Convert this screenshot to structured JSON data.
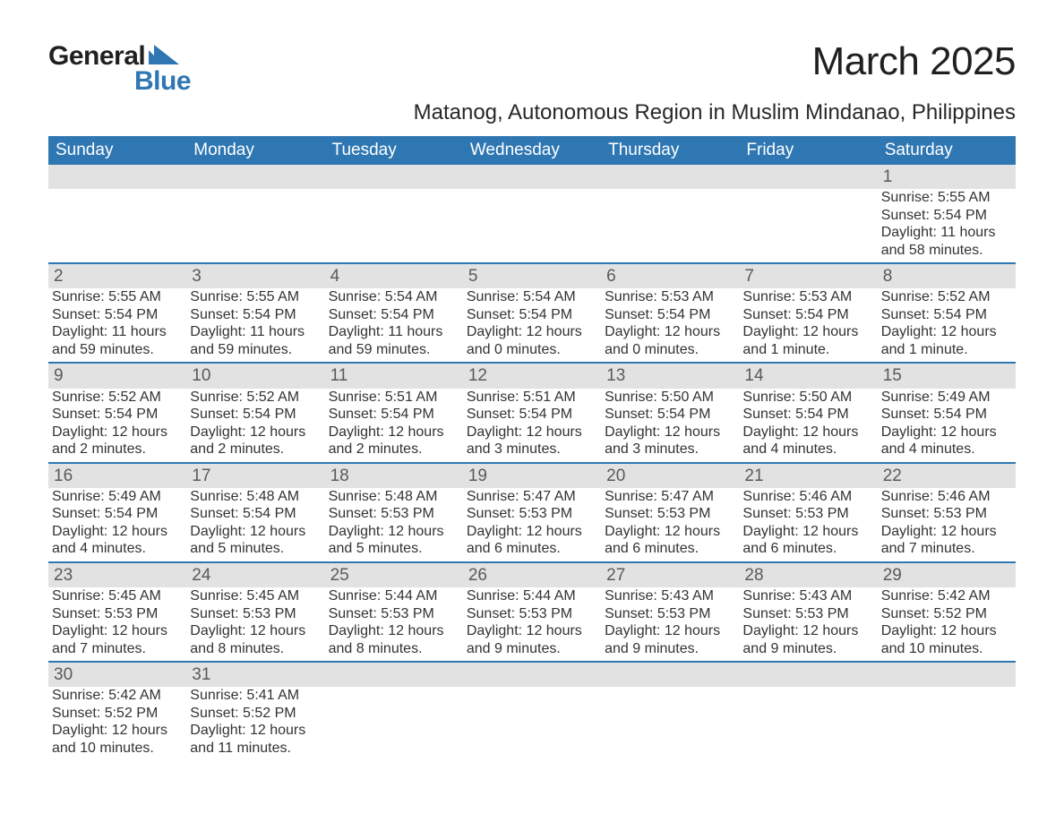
{
  "logo": {
    "text_top": "General",
    "text_bottom": "Blue",
    "color_blue": "#2f77b3",
    "color_dark": "#202020"
  },
  "header": {
    "month_title": "March 2025",
    "location": "Matanog, Autonomous Region in Muslim Mindanao, Philippines"
  },
  "calendar": {
    "header_bg": "#2f77b3",
    "header_fg": "#ffffff",
    "daynum_bg": "#e2e2e2",
    "daynum_fg": "#5a5a5a",
    "rule_color": "#2f77b3",
    "columns": [
      "Sunday",
      "Monday",
      "Tuesday",
      "Wednesday",
      "Thursday",
      "Friday",
      "Saturday"
    ],
    "weeks": [
      [
        null,
        null,
        null,
        null,
        null,
        null,
        {
          "n": "1",
          "sr": "Sunrise: 5:55 AM",
          "ss": "Sunset: 5:54 PM",
          "d1": "Daylight: 11 hours",
          "d2": "and 58 minutes."
        }
      ],
      [
        {
          "n": "2",
          "sr": "Sunrise: 5:55 AM",
          "ss": "Sunset: 5:54 PM",
          "d1": "Daylight: 11 hours",
          "d2": "and 59 minutes."
        },
        {
          "n": "3",
          "sr": "Sunrise: 5:55 AM",
          "ss": "Sunset: 5:54 PM",
          "d1": "Daylight: 11 hours",
          "d2": "and 59 minutes."
        },
        {
          "n": "4",
          "sr": "Sunrise: 5:54 AM",
          "ss": "Sunset: 5:54 PM",
          "d1": "Daylight: 11 hours",
          "d2": "and 59 minutes."
        },
        {
          "n": "5",
          "sr": "Sunrise: 5:54 AM",
          "ss": "Sunset: 5:54 PM",
          "d1": "Daylight: 12 hours",
          "d2": "and 0 minutes."
        },
        {
          "n": "6",
          "sr": "Sunrise: 5:53 AM",
          "ss": "Sunset: 5:54 PM",
          "d1": "Daylight: 12 hours",
          "d2": "and 0 minutes."
        },
        {
          "n": "7",
          "sr": "Sunrise: 5:53 AM",
          "ss": "Sunset: 5:54 PM",
          "d1": "Daylight: 12 hours",
          "d2": "and 1 minute."
        },
        {
          "n": "8",
          "sr": "Sunrise: 5:52 AM",
          "ss": "Sunset: 5:54 PM",
          "d1": "Daylight: 12 hours",
          "d2": "and 1 minute."
        }
      ],
      [
        {
          "n": "9",
          "sr": "Sunrise: 5:52 AM",
          "ss": "Sunset: 5:54 PM",
          "d1": "Daylight: 12 hours",
          "d2": "and 2 minutes."
        },
        {
          "n": "10",
          "sr": "Sunrise: 5:52 AM",
          "ss": "Sunset: 5:54 PM",
          "d1": "Daylight: 12 hours",
          "d2": "and 2 minutes."
        },
        {
          "n": "11",
          "sr": "Sunrise: 5:51 AM",
          "ss": "Sunset: 5:54 PM",
          "d1": "Daylight: 12 hours",
          "d2": "and 2 minutes."
        },
        {
          "n": "12",
          "sr": "Sunrise: 5:51 AM",
          "ss": "Sunset: 5:54 PM",
          "d1": "Daylight: 12 hours",
          "d2": "and 3 minutes."
        },
        {
          "n": "13",
          "sr": "Sunrise: 5:50 AM",
          "ss": "Sunset: 5:54 PM",
          "d1": "Daylight: 12 hours",
          "d2": "and 3 minutes."
        },
        {
          "n": "14",
          "sr": "Sunrise: 5:50 AM",
          "ss": "Sunset: 5:54 PM",
          "d1": "Daylight: 12 hours",
          "d2": "and 4 minutes."
        },
        {
          "n": "15",
          "sr": "Sunrise: 5:49 AM",
          "ss": "Sunset: 5:54 PM",
          "d1": "Daylight: 12 hours",
          "d2": "and 4 minutes."
        }
      ],
      [
        {
          "n": "16",
          "sr": "Sunrise: 5:49 AM",
          "ss": "Sunset: 5:54 PM",
          "d1": "Daylight: 12 hours",
          "d2": "and 4 minutes."
        },
        {
          "n": "17",
          "sr": "Sunrise: 5:48 AM",
          "ss": "Sunset: 5:54 PM",
          "d1": "Daylight: 12 hours",
          "d2": "and 5 minutes."
        },
        {
          "n": "18",
          "sr": "Sunrise: 5:48 AM",
          "ss": "Sunset: 5:53 PM",
          "d1": "Daylight: 12 hours",
          "d2": "and 5 minutes."
        },
        {
          "n": "19",
          "sr": "Sunrise: 5:47 AM",
          "ss": "Sunset: 5:53 PM",
          "d1": "Daylight: 12 hours",
          "d2": "and 6 minutes."
        },
        {
          "n": "20",
          "sr": "Sunrise: 5:47 AM",
          "ss": "Sunset: 5:53 PM",
          "d1": "Daylight: 12 hours",
          "d2": "and 6 minutes."
        },
        {
          "n": "21",
          "sr": "Sunrise: 5:46 AM",
          "ss": "Sunset: 5:53 PM",
          "d1": "Daylight: 12 hours",
          "d2": "and 6 minutes."
        },
        {
          "n": "22",
          "sr": "Sunrise: 5:46 AM",
          "ss": "Sunset: 5:53 PM",
          "d1": "Daylight: 12 hours",
          "d2": "and 7 minutes."
        }
      ],
      [
        {
          "n": "23",
          "sr": "Sunrise: 5:45 AM",
          "ss": "Sunset: 5:53 PM",
          "d1": "Daylight: 12 hours",
          "d2": "and 7 minutes."
        },
        {
          "n": "24",
          "sr": "Sunrise: 5:45 AM",
          "ss": "Sunset: 5:53 PM",
          "d1": "Daylight: 12 hours",
          "d2": "and 8 minutes."
        },
        {
          "n": "25",
          "sr": "Sunrise: 5:44 AM",
          "ss": "Sunset: 5:53 PM",
          "d1": "Daylight: 12 hours",
          "d2": "and 8 minutes."
        },
        {
          "n": "26",
          "sr": "Sunrise: 5:44 AM",
          "ss": "Sunset: 5:53 PM",
          "d1": "Daylight: 12 hours",
          "d2": "and 9 minutes."
        },
        {
          "n": "27",
          "sr": "Sunrise: 5:43 AM",
          "ss": "Sunset: 5:53 PM",
          "d1": "Daylight: 12 hours",
          "d2": "and 9 minutes."
        },
        {
          "n": "28",
          "sr": "Sunrise: 5:43 AM",
          "ss": "Sunset: 5:53 PM",
          "d1": "Daylight: 12 hours",
          "d2": "and 9 minutes."
        },
        {
          "n": "29",
          "sr": "Sunrise: 5:42 AM",
          "ss": "Sunset: 5:52 PM",
          "d1": "Daylight: 12 hours",
          "d2": "and 10 minutes."
        }
      ],
      [
        {
          "n": "30",
          "sr": "Sunrise: 5:42 AM",
          "ss": "Sunset: 5:52 PM",
          "d1": "Daylight: 12 hours",
          "d2": "and 10 minutes."
        },
        {
          "n": "31",
          "sr": "Sunrise: 5:41 AM",
          "ss": "Sunset: 5:52 PM",
          "d1": "Daylight: 12 hours",
          "d2": "and 11 minutes."
        },
        null,
        null,
        null,
        null,
        null
      ]
    ]
  }
}
